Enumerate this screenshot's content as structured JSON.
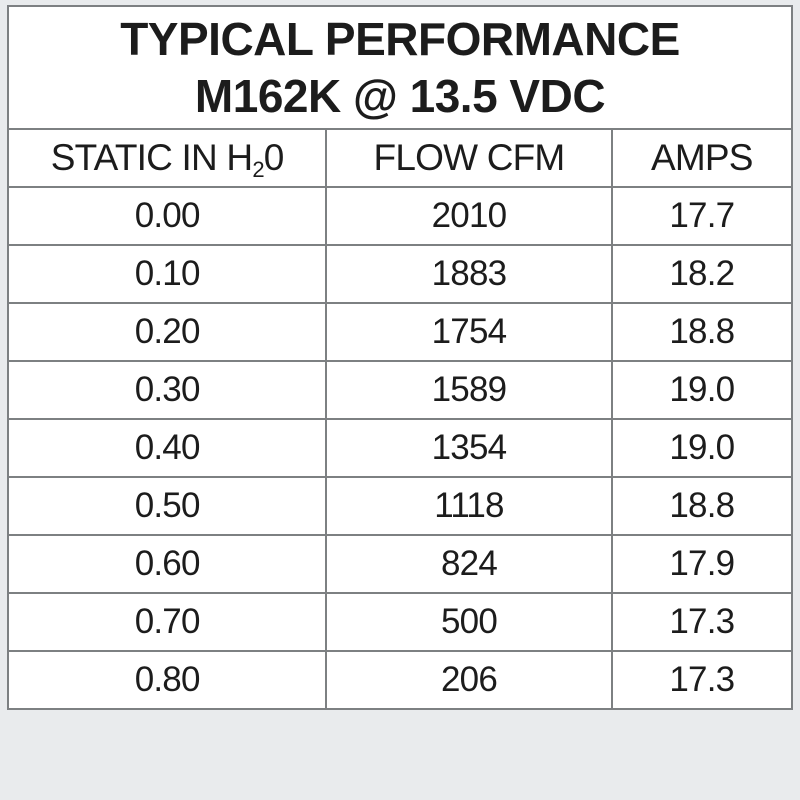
{
  "title": {
    "line1": "TYPICAL PERFORMANCE",
    "line2": "M162K @ 13.5 VDC"
  },
  "table": {
    "columns": [
      {
        "label_prefix": "STATIC IN H",
        "label_sub": "2",
        "label_suffix": "0"
      },
      {
        "label": "FLOW CFM"
      },
      {
        "label": "AMPS"
      }
    ],
    "rows": [
      [
        "0.00",
        "2010",
        "17.7"
      ],
      [
        "0.10",
        "1883",
        "18.2"
      ],
      [
        "0.20",
        "1754",
        "18.8"
      ],
      [
        "0.30",
        "1589",
        "19.0"
      ],
      [
        "0.40",
        "1354",
        "19.0"
      ],
      [
        "0.50",
        "1118",
        "18.8"
      ],
      [
        "0.60",
        "824",
        "17.9"
      ],
      [
        "0.70",
        "500",
        "17.3"
      ],
      [
        "0.80",
        "206",
        "17.3"
      ]
    ]
  },
  "colors": {
    "page_background": "#e9ebed",
    "cell_background": "#ffffff",
    "grid_line": "#7d8082",
    "outer_border": "#85888a",
    "text": "#1c1c1c"
  }
}
